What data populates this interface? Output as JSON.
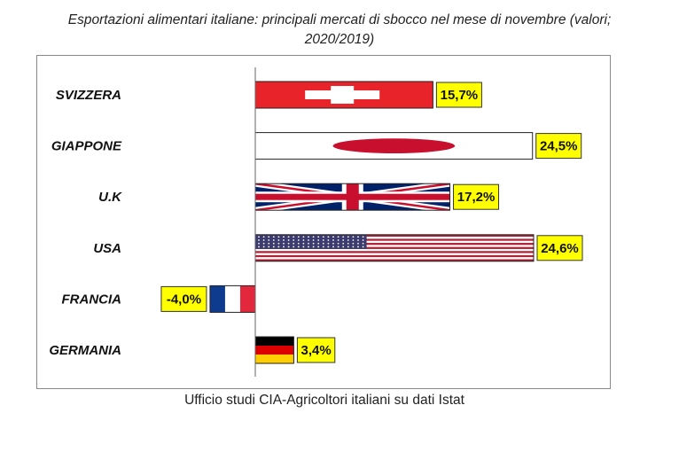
{
  "chart_data": {
    "type": "bar",
    "orientation": "horizontal",
    "title_line1": "Esportazioni alimentari italiane: principali mercati di sbocco nel mese di novembre  (valori;",
    "title_line2": "2020/2019)",
    "source": "Ufficio studi CIA-Agricoltori italiani su dati Istat",
    "categories": [
      "SVIZZERA",
      "GIAPPONE",
      "U.K",
      "USA",
      "FRANCIA",
      "GERMANIA"
    ],
    "values": [
      15.7,
      24.5,
      17.2,
      24.6,
      -4.0,
      3.4
    ],
    "value_labels": [
      "15,7%",
      "24,5%",
      "17,2%",
      "24,6%",
      "-4,0%",
      "3,4%"
    ],
    "bar_fills": [
      "flag-switzerland",
      "flag-japan",
      "flag-uk",
      "flag-usa",
      "flag-france",
      "flag-germany"
    ],
    "label_box_color": "#ffff00",
    "xlim": [
      -4.0,
      24.6
    ],
    "grid": false,
    "legend": "none"
  }
}
